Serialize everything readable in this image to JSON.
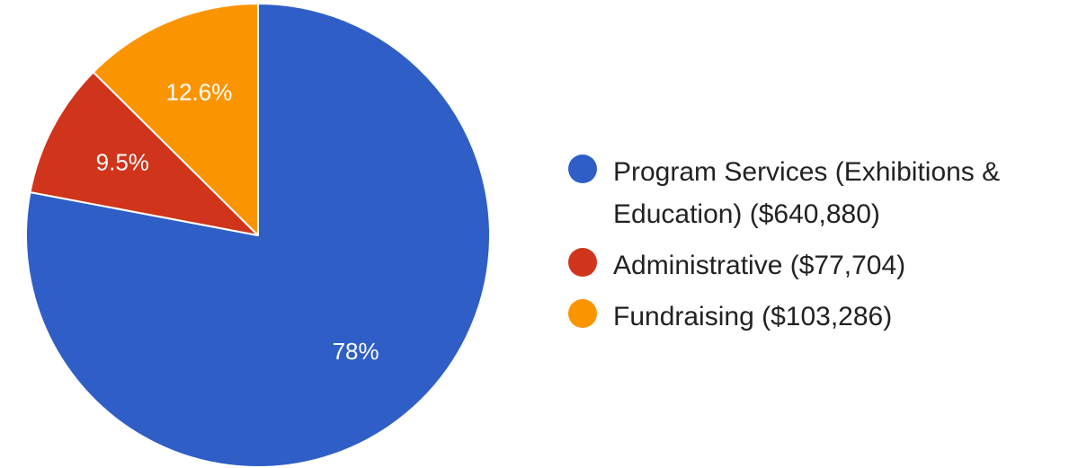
{
  "chart_data": {
    "type": "pie",
    "title": "",
    "slices": [
      {
        "label": "Program Services (Exhibitions & Education) ($640,880)",
        "value": 640880,
        "percent_label": "78%",
        "color": "#2f5ec7"
      },
      {
        "label": "Administrative ($77,704)",
        "value": 77704,
        "percent_label": "9.5%",
        "color": "#d0341a"
      },
      {
        "label": "Fundraising ($103,286)",
        "value": 103286,
        "percent_label": "12.6%",
        "color": "#fb9401"
      }
    ],
    "legend_position": "right"
  }
}
